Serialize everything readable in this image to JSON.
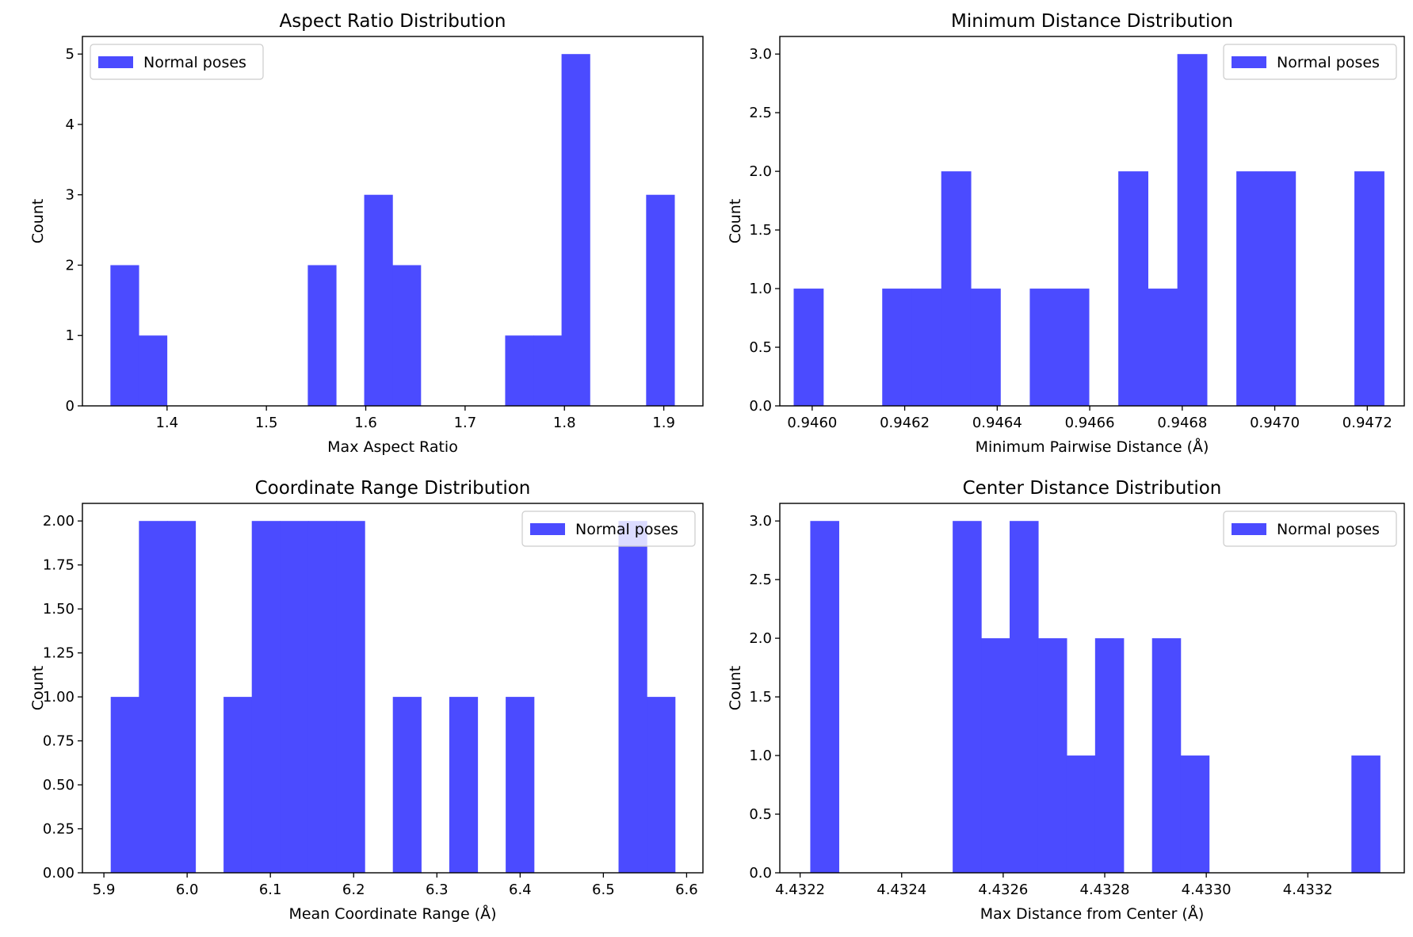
{
  "chart_data": [
    {
      "type": "bar",
      "title": "Aspect Ratio Distribution",
      "xlabel": "Max Aspect Ratio",
      "ylabel": "Count",
      "legend": {
        "label": "Normal poses",
        "position": "top-left"
      },
      "color": "#4b4bff",
      "xlim": [
        1.3148,
        1.9394
      ],
      "ylim": [
        0,
        5.25
      ],
      "xticks": [
        "1.4",
        "1.5",
        "1.6",
        "1.7",
        "1.8",
        "1.9"
      ],
      "xtick_values": [
        1.4,
        1.5,
        1.6,
        1.7,
        1.8,
        1.9
      ],
      "yticks": [
        "0",
        "1",
        "2",
        "3",
        "4",
        "5"
      ],
      "ytick_values": [
        0,
        1,
        2,
        3,
        4,
        5
      ],
      "bins": {
        "start": 1.343,
        "width": 0.02838
      },
      "values": [
        2,
        1,
        0,
        0,
        0,
        0,
        0,
        2,
        0,
        3,
        2,
        0,
        0,
        0,
        1,
        1,
        5,
        0,
        0,
        3
      ]
    },
    {
      "type": "bar",
      "title": "Minimum Distance Distribution",
      "xlabel": "Minimum Pairwise Distance (Å)",
      "ylabel": "Count",
      "legend": {
        "label": "Normal poses",
        "position": "top-right"
      },
      "color": "#4b4bff",
      "xlim": [
        0.94593,
        0.94728
      ],
      "ylim": [
        0,
        3.15
      ],
      "xticks": [
        "0.9460",
        "0.9462",
        "0.9464",
        "0.9466",
        "0.9468",
        "0.9470",
        "0.9472"
      ],
      "xtick_values": [
        0.946,
        0.9462,
        0.9464,
        0.9466,
        0.9468,
        0.947,
        0.9472
      ],
      "yticks": [
        "0.0",
        "0.5",
        "1.0",
        "1.5",
        "2.0",
        "2.5",
        "3.0"
      ],
      "ytick_values": [
        0,
        0.5,
        1,
        1.5,
        2,
        2.5,
        3
      ],
      "bins": {
        "start": 0.94596,
        "width": 6.38e-05
      },
      "values": [
        1,
        0,
        0,
        1,
        1,
        2,
        1,
        0,
        1,
        1,
        0,
        2,
        1,
        3,
        0,
        2,
        2,
        0,
        0,
        2
      ]
    },
    {
      "type": "bar",
      "title": "Coordinate Range Distribution",
      "xlabel": "Mean Coordinate Range (Å)",
      "ylabel": "Count",
      "legend": {
        "label": "Normal poses",
        "position": "top-right"
      },
      "color": "#4b4bff",
      "xlim": [
        5.8742,
        6.6196
      ],
      "ylim": [
        0,
        2.1
      ],
      "xticks": [
        "5.9",
        "6.0",
        "6.1",
        "6.2",
        "6.3",
        "6.4",
        "6.5",
        "6.6"
      ],
      "xtick_values": [
        5.9,
        6.0,
        6.1,
        6.2,
        6.3,
        6.4,
        6.5,
        6.6
      ],
      "yticks": [
        "0.00",
        "0.25",
        "0.50",
        "0.75",
        "1.00",
        "1.25",
        "1.50",
        "1.75",
        "2.00"
      ],
      "ytick_values": [
        0,
        0.25,
        0.5,
        0.75,
        1.0,
        1.25,
        1.5,
        1.75,
        2.0
      ],
      "bins": {
        "start": 5.9082,
        "width": 0.03389
      },
      "values": [
        1,
        2,
        2,
        0,
        1,
        2,
        2,
        2,
        2,
        0,
        1,
        0,
        1,
        0,
        1,
        0,
        0,
        0,
        2,
        1
      ]
    },
    {
      "type": "bar",
      "title": "Center Distance Distribution",
      "xlabel": "Max Distance from Center (Å)",
      "ylabel": "Count",
      "legend": {
        "label": "Normal poses",
        "position": "top-right"
      },
      "color": "#4b4bff",
      "xlim": [
        4.43216,
        4.43339
      ],
      "ylim": [
        0,
        3.15
      ],
      "xticks": [
        "4.4322",
        "4.4324",
        "4.4326",
        "4.4328",
        "4.4330",
        "4.4332"
      ],
      "xtick_values": [
        4.4322,
        4.4324,
        4.4326,
        4.4328,
        4.433,
        4.4332
      ],
      "yticks": [
        "0.0",
        "0.5",
        "1.0",
        "1.5",
        "2.0",
        "2.5",
        "3.0"
      ],
      "ytick_values": [
        0,
        0.5,
        1,
        1.5,
        2,
        2.5,
        3
      ],
      "bins": {
        "start": 4.43222,
        "width": 5.61e-05
      },
      "values": [
        3,
        0,
        0,
        0,
        0,
        3,
        2,
        3,
        2,
        1,
        2,
        0,
        2,
        1,
        0,
        0,
        0,
        0,
        0,
        1
      ]
    }
  ]
}
